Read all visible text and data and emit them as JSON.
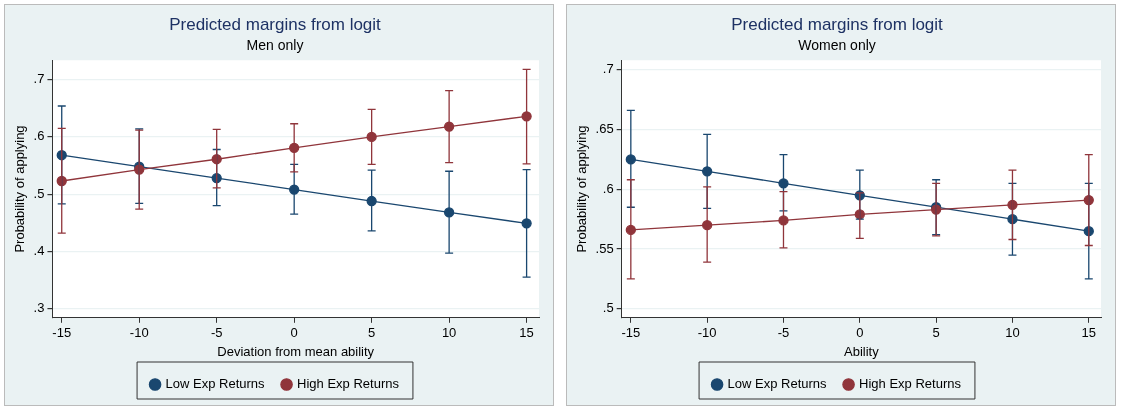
{
  "chart_data": [
    {
      "type": "line",
      "title": "Predicted margins from logit",
      "subtitle": "Men only",
      "xlabel": "Deviation from mean ability",
      "ylabel": "Probability of applying",
      "x": [
        -15,
        -10,
        -5,
        0,
        5,
        10,
        15
      ],
      "xlim": [
        -15.6,
        15.8
      ],
      "xticks": [
        -15,
        -10,
        -5,
        0,
        5,
        10,
        15
      ],
      "ylim": [
        0.284,
        0.734
      ],
      "yticks": [
        {
          "value": 0.3,
          "label": ".3"
        },
        {
          "value": 0.4,
          "label": ".4"
        },
        {
          "value": 0.5,
          "label": ".5"
        },
        {
          "value": 0.6,
          "label": ".6"
        },
        {
          "value": 0.7,
          "label": ".7"
        }
      ],
      "grid": "y",
      "legend": "bottom",
      "marker": "circle",
      "line_style": "solid",
      "series": [
        {
          "name": "Low Exp Returns",
          "color": "#1a476f",
          "values": [
            0.568,
            0.548,
            0.528,
            0.508,
            0.488,
            0.468,
            0.449
          ],
          "errors": [
            [
              0.483,
              0.654
            ],
            [
              0.484,
              0.614
            ],
            [
              0.48,
              0.578
            ],
            [
              0.465,
              0.552
            ],
            [
              0.436,
              0.542
            ],
            [
              0.397,
              0.54
            ],
            [
              0.355,
              0.543
            ]
          ]
        },
        {
          "name": "High Exp Returns",
          "color": "#90353b",
          "values": [
            0.523,
            0.543,
            0.561,
            0.581,
            0.6,
            0.618,
            0.636
          ],
          "errors": [
            [
              0.432,
              0.615
            ],
            [
              0.474,
              0.612
            ],
            [
              0.511,
              0.613
            ],
            [
              0.539,
              0.623
            ],
            [
              0.552,
              0.648
            ],
            [
              0.555,
              0.681
            ],
            [
              0.553,
              0.718
            ]
          ]
        }
      ]
    },
    {
      "type": "line",
      "title": "Predicted margins from logit",
      "subtitle": "Women only",
      "xlabel": "Ability",
      "ylabel": "Probability of applying",
      "x": [
        -15,
        -10,
        -5,
        0,
        5,
        10,
        15
      ],
      "xlim": [
        -15.6,
        15.8
      ],
      "xticks": [
        -15,
        -10,
        -5,
        0,
        5,
        10,
        15
      ],
      "ylim": [
        0.4925,
        0.708
      ],
      "yticks": [
        {
          "value": 0.5,
          "label": ".5"
        },
        {
          "value": 0.55,
          "label": ".55"
        },
        {
          "value": 0.6,
          "label": ".6"
        },
        {
          "value": 0.65,
          "label": ".65"
        },
        {
          "value": 0.7,
          "label": ".7"
        }
      ],
      "grid": "y",
      "legend": "bottom",
      "marker": "circle",
      "line_style": "solid",
      "series": [
        {
          "name": "Low Exp Returns",
          "color": "#1a476f",
          "values": [
            0.625,
            0.615,
            0.605,
            0.595,
            0.585,
            0.575,
            0.565
          ],
          "errors": [
            [
              0.585,
              0.666
            ],
            [
              0.584,
              0.646
            ],
            [
              0.582,
              0.629
            ],
            [
              0.575,
              0.616
            ],
            [
              0.562,
              0.608
            ],
            [
              0.545,
              0.605
            ],
            [
              0.525,
              0.605
            ]
          ]
        },
        {
          "name": "High Exp Returns",
          "color": "#90353b",
          "values": [
            0.566,
            0.57,
            0.574,
            0.579,
            0.583,
            0.587,
            0.591
          ],
          "errors": [
            [
              0.525,
              0.608
            ],
            [
              0.539,
              0.602
            ],
            [
              0.551,
              0.598
            ],
            [
              0.559,
              0.597
            ],
            [
              0.561,
              0.605
            ],
            [
              0.558,
              0.616
            ],
            [
              0.553,
              0.629
            ]
          ]
        }
      ]
    }
  ]
}
